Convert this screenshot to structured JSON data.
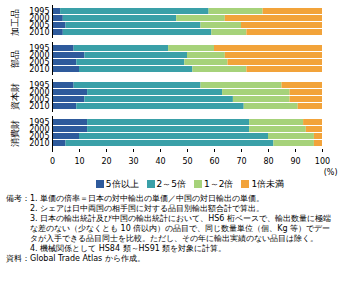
{
  "chart_data": {
    "type": "bar",
    "orientation": "horizontal",
    "stacked": true,
    "groups": [
      "加工品",
      "部品",
      "資本財",
      "消費財"
    ],
    "categories": [
      "1995",
      "2000",
      "2005",
      "2010"
    ],
    "series": [
      {
        "name": "5倍以上",
        "color": "#2e5a9c",
        "values": [
          [
            3,
            4,
            5,
            4
          ],
          [
            8,
            12,
            9,
            10
          ],
          [
            8,
            13,
            12,
            9
          ],
          [
            13,
            13,
            10,
            5
          ]
        ]
      },
      {
        "name": "2～5倍",
        "color": "#3aa0a8",
        "values": [
          [
            55,
            42,
            50,
            55
          ],
          [
            35,
            38,
            40,
            42
          ],
          [
            47,
            50,
            55,
            62
          ],
          [
            60,
            60,
            70,
            77
          ]
        ]
      },
      {
        "name": "1～2倍",
        "color": "#a6d27a",
        "values": [
          [
            20,
            18,
            15,
            13
          ],
          [
            17,
            14,
            16,
            20
          ],
          [
            30,
            25,
            21,
            20
          ],
          [
            20,
            21,
            17,
            15
          ]
        ]
      },
      {
        "name": "1倍未満",
        "color": "#f2a33a",
        "values": [
          [
            22,
            36,
            30,
            28
          ],
          [
            40,
            36,
            35,
            28
          ],
          [
            15,
            12,
            12,
            9
          ],
          [
            7,
            6,
            3,
            3
          ]
        ]
      }
    ],
    "x_label": "(%)",
    "xlim": [
      0,
      100
    ],
    "xticks": [
      0,
      10,
      20,
      30,
      40,
      50,
      60,
      70,
      80,
      90,
      100
    ],
    "grid": false,
    "legend": "bottom",
    "notes": [
      "備考：",
      "1. 単価の倍率＝日本の対中輸出の単価／中国の対日輸出の単価。",
      "2. シェアは日中両国の相手国に対する品目別輸出額合計で算出。",
      "3. 日本の輸出統計及び中国の輸出統計において、HS6 桁ベースで、輸出数量に極端な差のない（少なくとも 10 倍以内）の品目で、同じ数量単位（個、Kg 等）でデータが入手できる品目同士を比較。ただし、その年に輸出実績のない品目は除く。",
      "4. 機械関係として HS84 類～HS91 類を対象に計算。"
    ],
    "source": "資料：Global Trade Atlas から作成。"
  }
}
